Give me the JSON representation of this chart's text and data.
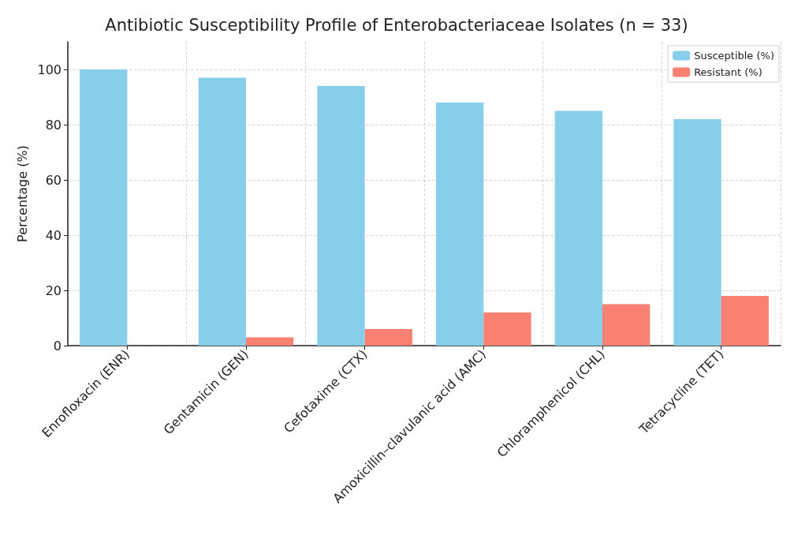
{
  "chart_data": {
    "type": "bar",
    "title": "Antibiotic Susceptibility Profile of Enterobacteriaceae Isolates (n = 33)",
    "ylabel": "Percentage (%)",
    "categories": [
      "Enrofloxacin (ENR)",
      "Gentamicin (GEN)",
      "Cefotaxime (CTX)",
      "Amoxicillin–clavulanic acid (AMC)",
      "Chloramphenicol (CHL)",
      "Tetracycline (TET)"
    ],
    "series": [
      {
        "name": "Susceptible (%)",
        "color": "#87ceeb",
        "values": [
          100,
          97,
          94,
          88,
          85,
          82
        ]
      },
      {
        "name": "Resistant (%)",
        "color": "#fa8072",
        "values": [
          0,
          3,
          6,
          12,
          15,
          18
        ]
      }
    ],
    "ylim": [
      0,
      110
    ],
    "yticks": [
      0,
      20,
      40,
      60,
      80,
      100
    ],
    "grid": true,
    "legend": "top right"
  }
}
